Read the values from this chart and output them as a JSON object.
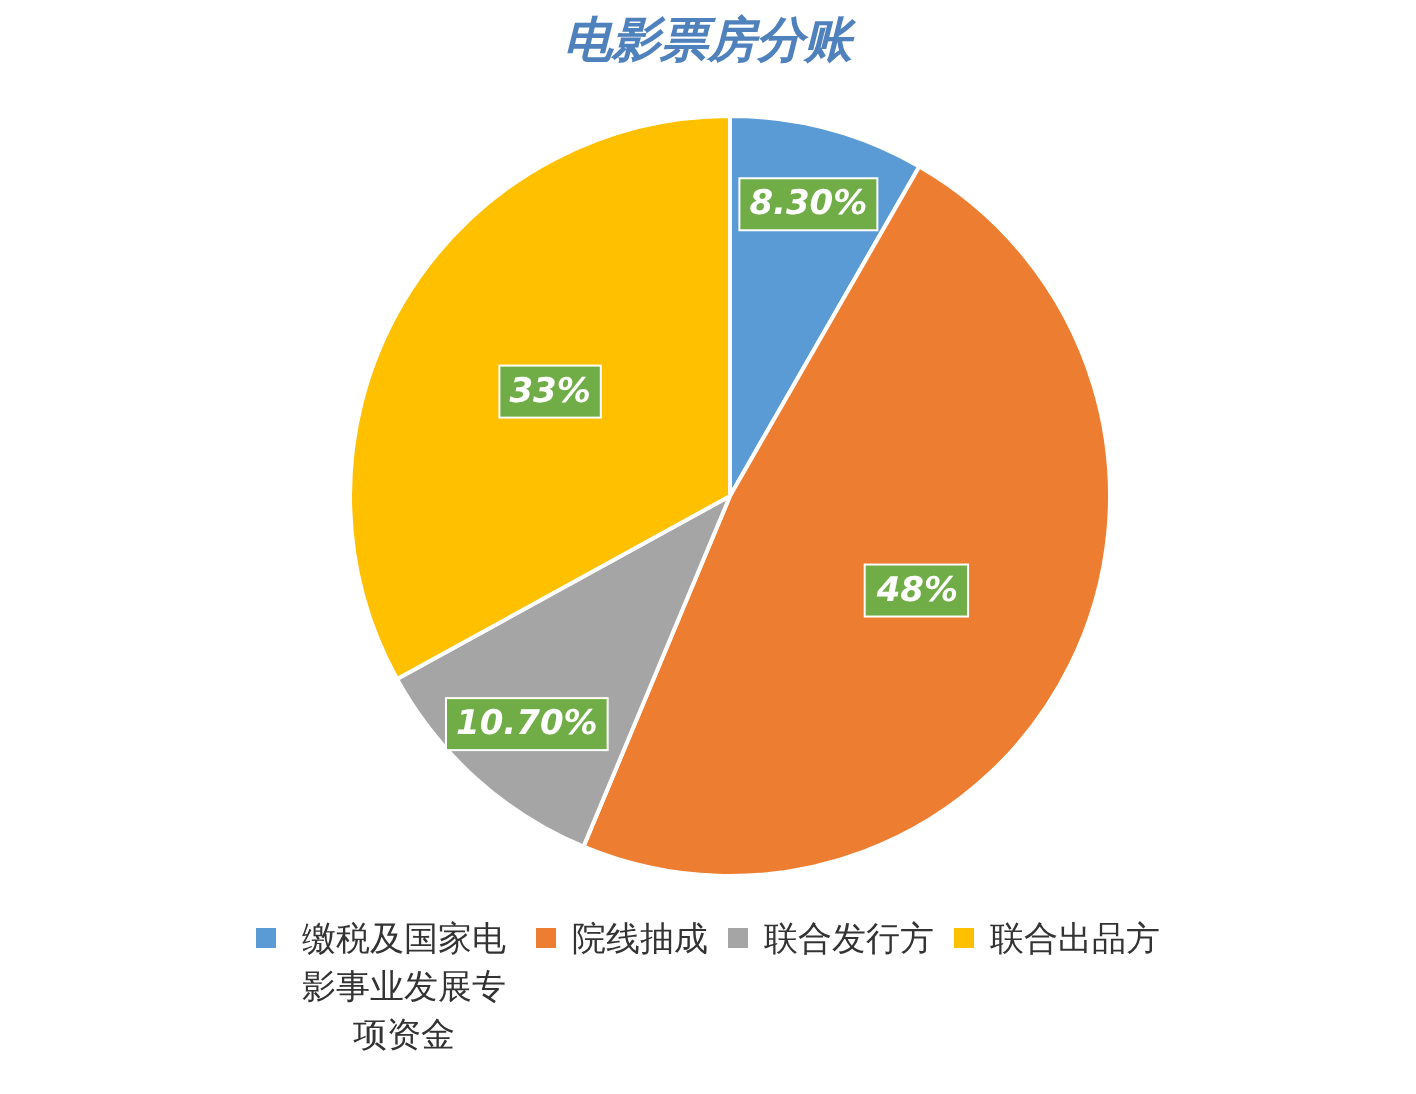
{
  "chart_data": {
    "type": "pie",
    "title": "电影票房分账",
    "categories": [
      "缴税及国家电影事业发展专项资金",
      "院线抽成",
      "联合发行方",
      "联合出品方"
    ],
    "values": [
      8.3,
      48,
      10.7,
      33
    ],
    "colors": [
      "#5b9bd5",
      "#ed7d31",
      "#a5a5a5",
      "#ffc000"
    ],
    "value_labels": [
      "8.30%",
      "48%",
      "10.70%",
      "33%"
    ],
    "legend": "bottom"
  }
}
